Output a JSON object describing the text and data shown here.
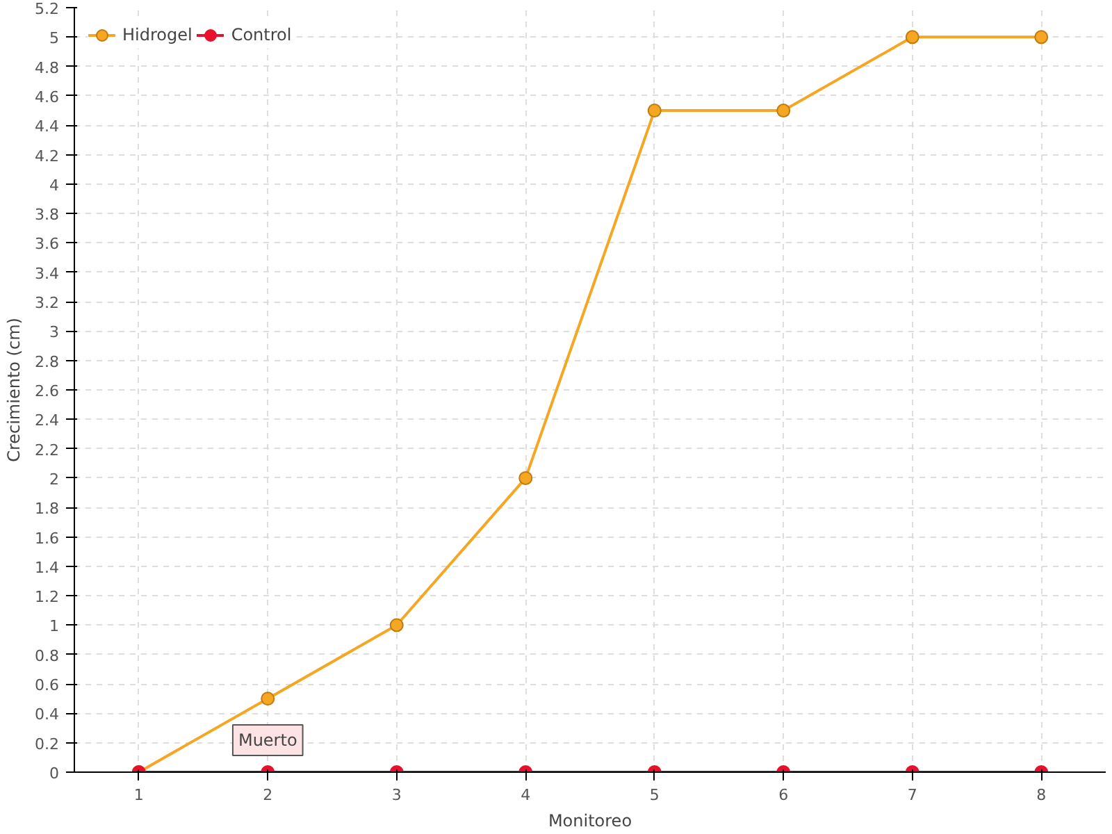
{
  "chart_data": {
    "type": "line",
    "xlabel": "Monitoreo",
    "ylabel": "Crecimiento (cm)",
    "categories": [
      "1",
      "2",
      "3",
      "4",
      "5",
      "6",
      "7",
      "8"
    ],
    "series": [
      {
        "name": "Hidrogel",
        "color": "#f5a623",
        "values": [
          0,
          0.5,
          1,
          2,
          4.5,
          4.5,
          5,
          5
        ]
      },
      {
        "name": "Control",
        "color": "#e8112d",
        "values": [
          0,
          0,
          0,
          0,
          0,
          0,
          0,
          0
        ]
      }
    ],
    "ylim": [
      0,
      5.2
    ],
    "yticks": [
      0,
      0.2,
      0.4,
      0.6,
      0.8,
      1,
      1.2,
      1.4,
      1.6,
      1.8,
      2,
      2.2,
      2.4,
      2.6,
      2.8,
      3,
      3.2,
      3.4,
      3.6,
      3.8,
      4,
      4.2,
      4.4,
      4.6,
      4.8,
      5,
      5.2
    ],
    "grid": true,
    "legend": "top left",
    "marker": "circle",
    "line_style": "solid",
    "annotations": [
      {
        "text": "Muerto",
        "x": "2",
        "y": 0
      }
    ]
  }
}
